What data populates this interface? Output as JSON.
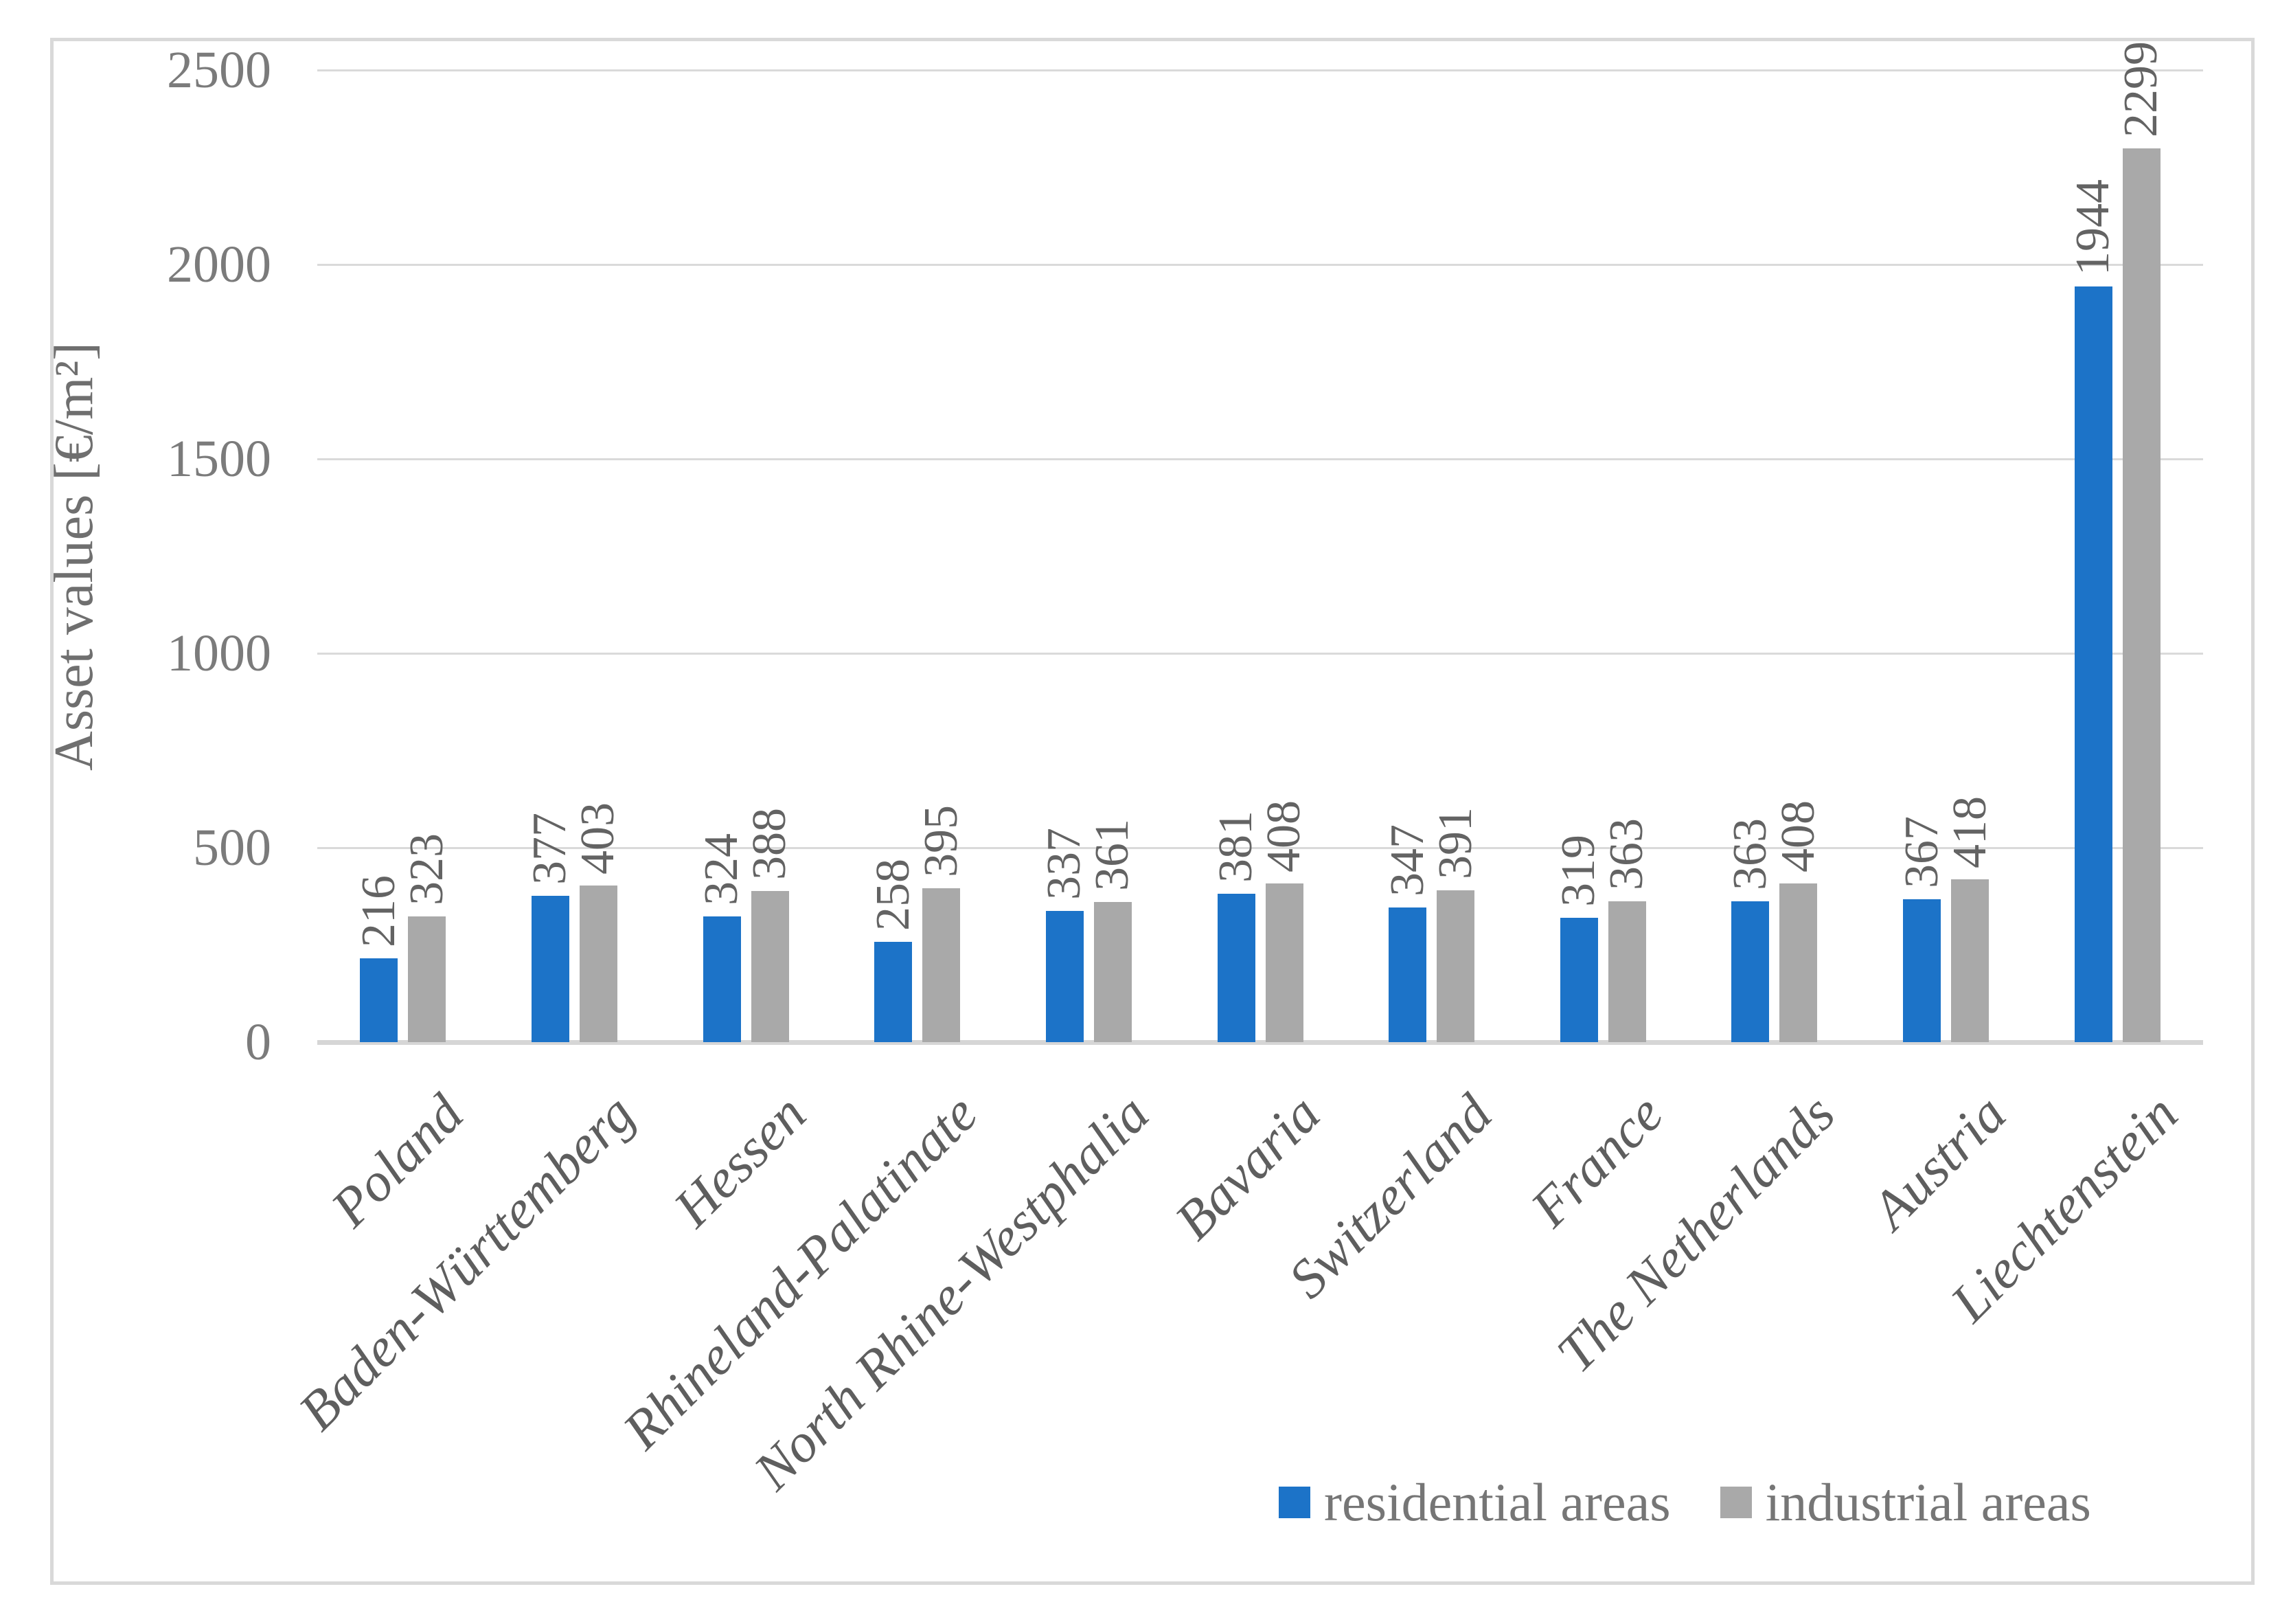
{
  "chart_data": {
    "type": "bar",
    "title": "",
    "ylabel": "Asset values [€/m²]",
    "xlabel": "",
    "categories": [
      "Poland",
      "Baden-Württemberg",
      "Hessen",
      "Rhineland-Palatinate",
      "North Rhine-Westphalia",
      "Bavaria",
      "Switzerland",
      "France",
      "The Netherlands",
      "Austria",
      "Liechtenstein"
    ],
    "series": [
      {
        "name": "residential areas",
        "color": "#1c73c8",
        "values": [
          216,
          377,
          324,
          258,
          337,
          381,
          347,
          319,
          363,
          367,
          1944
        ]
      },
      {
        "name": "industrial areas",
        "color": "#a9a9a9",
        "values": [
          323,
          403,
          388,
          395,
          361,
          408,
          391,
          363,
          408,
          418,
          2299
        ]
      }
    ],
    "ylim": [
      0,
      2500
    ],
    "yticks": [
      0,
      500,
      1000,
      1500,
      2000,
      2500
    ],
    "grid": true,
    "data_labels": true,
    "data_label_rotation": 90,
    "category_label_rotation": 45,
    "legend_position": "bottom-right",
    "gridline_color": "#dadada",
    "frame_border_color": "#d9d9d9"
  }
}
